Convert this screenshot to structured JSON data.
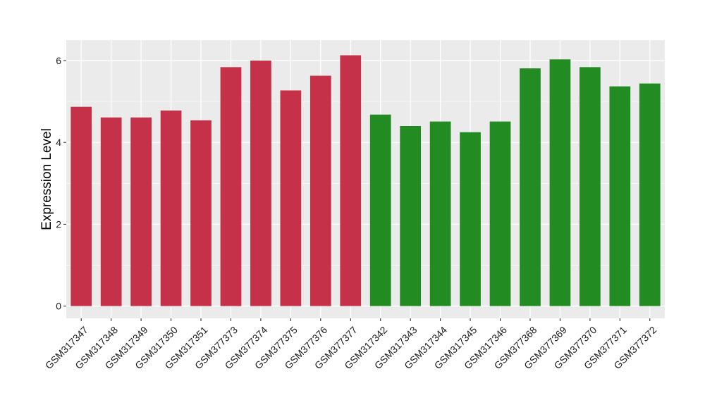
{
  "chart_data": {
    "type": "bar",
    "title": "",
    "xlabel": "",
    "ylabel": "Expression Level",
    "ylim": [
      -0.3,
      6.5
    ],
    "yticks": [
      0,
      2,
      4,
      6
    ],
    "grid": true,
    "legend": "none",
    "colors": {
      "group_a": "#C43149",
      "group_b": "#228B22",
      "panel": "#EBEBEB",
      "grid": "#FFFFFF"
    },
    "categories": [
      "GSM317347",
      "GSM317348",
      "GSM317349",
      "GSM317350",
      "GSM317351",
      "GSM377373",
      "GSM377374",
      "GSM377375",
      "GSM377376",
      "GSM377377",
      "GSM317342",
      "GSM317343",
      "GSM317344",
      "GSM317345",
      "GSM317346",
      "GSM377368",
      "GSM377369",
      "GSM377370",
      "GSM377371",
      "GSM377372"
    ],
    "values": [
      4.87,
      4.61,
      4.61,
      4.78,
      4.54,
      5.84,
      6.0,
      5.27,
      5.63,
      6.13,
      4.68,
      4.4,
      4.51,
      4.25,
      4.51,
      5.81,
      6.03,
      5.84,
      5.37,
      5.44
    ],
    "bar_groups": [
      "group_a",
      "group_a",
      "group_a",
      "group_a",
      "group_a",
      "group_a",
      "group_a",
      "group_a",
      "group_a",
      "group_a",
      "group_b",
      "group_b",
      "group_b",
      "group_b",
      "group_b",
      "group_b",
      "group_b",
      "group_b",
      "group_b",
      "group_b"
    ]
  }
}
